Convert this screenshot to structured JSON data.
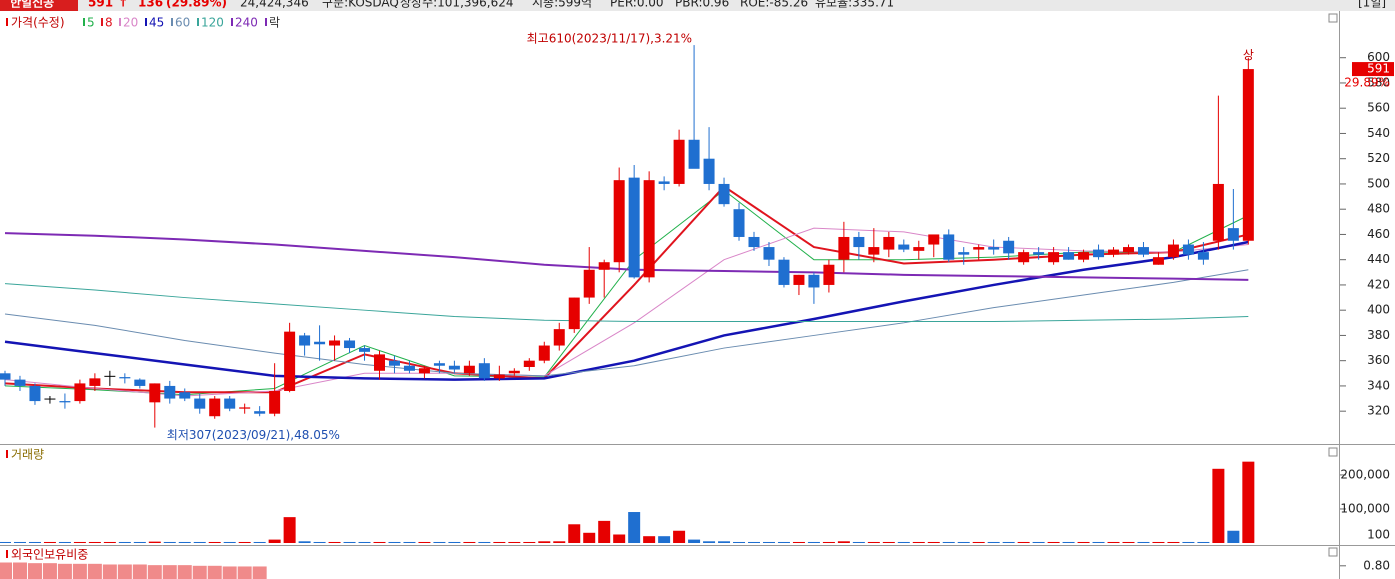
{
  "header": {
    "name": "한일신공",
    "price": "591",
    "arrow": "↑",
    "change": "136",
    "change_pct": "(29.89%)",
    "volume": "24,424,346",
    "market": "구분:KOSDAQ",
    "shares": "상장수:101,396,624",
    "cap": "시총:599억",
    "per": "PER:0.00",
    "pbr": "PBR:0.96",
    "roe": "ROE:-85.26",
    "reserve": "유보율:335.71",
    "period": "[1일]"
  },
  "chart_data": [
    {
      "type": "candlestick",
      "name": "가격(수정)",
      "up_color": "#e60000",
      "down_color": "#1f6fd0",
      "ylim": [
        294,
        637
      ],
      "yticks": [
        320,
        340,
        360,
        380,
        400,
        420,
        440,
        460,
        480,
        500,
        520,
        540,
        560,
        580,
        600
      ],
      "lock_label": "락",
      "open": [
        350,
        345,
        340,
        330,
        328,
        328,
        340,
        348,
        347,
        345,
        327,
        340,
        335,
        330,
        316,
        330,
        322,
        320,
        318,
        336,
        380,
        375,
        372,
        376,
        370,
        352,
        360,
        356,
        350,
        358,
        356,
        350,
        358,
        346,
        350,
        355,
        360,
        372,
        385,
        410,
        432,
        438,
        505,
        426,
        502,
        500,
        535,
        520,
        500,
        480,
        458,
        450,
        440,
        420,
        428,
        420,
        440,
        458,
        444,
        448,
        452,
        447,
        452,
        460,
        446,
        448,
        450,
        455,
        438,
        446,
        438,
        446,
        440,
        448,
        444,
        446,
        450,
        436,
        442,
        452,
        446,
        455,
        465,
        455
      ],
      "high": [
        352,
        348,
        342,
        332,
        334,
        345,
        350,
        352,
        350,
        346,
        342,
        344,
        338,
        334,
        332,
        332,
        326,
        324,
        358,
        390,
        382,
        388,
        380,
        378,
        372,
        368,
        364,
        360,
        356,
        360,
        360,
        360,
        362,
        356,
        354,
        362,
        375,
        390,
        410,
        450,
        440,
        513,
        515,
        510,
        506,
        543,
        610,
        545,
        505,
        485,
        462,
        454,
        442,
        428,
        430,
        440,
        470,
        462,
        465,
        462,
        456,
        455,
        458,
        464,
        450,
        452,
        456,
        458,
        448,
        450,
        450,
        450,
        448,
        452,
        450,
        452,
        454,
        446,
        456,
        456,
        454,
        570,
        496,
        600
      ],
      "low": [
        340,
        336,
        325,
        326,
        322,
        326,
        336,
        340,
        342,
        338,
        307,
        326,
        328,
        318,
        314,
        320,
        318,
        316,
        316,
        335,
        364,
        360,
        360,
        366,
        360,
        345,
        350,
        350,
        346,
        350,
        350,
        348,
        344,
        344,
        348,
        352,
        358,
        368,
        382,
        405,
        410,
        430,
        425,
        422,
        495,
        498,
        515,
        495,
        482,
        455,
        447,
        435,
        418,
        412,
        405,
        414,
        430,
        440,
        438,
        442,
        446,
        440,
        442,
        438,
        436,
        440,
        444,
        440,
        436,
        440,
        436,
        440,
        438,
        440,
        442,
        444,
        442,
        436,
        440,
        440,
        436,
        448,
        448,
        452
      ],
      "close": [
        345,
        340,
        328,
        330,
        327,
        342,
        346,
        348,
        346,
        340,
        342,
        330,
        330,
        322,
        330,
        322,
        323,
        318,
        336,
        383,
        372,
        373,
        376,
        370,
        367,
        365,
        356,
        352,
        354,
        356,
        353,
        356,
        346,
        349,
        352,
        360,
        372,
        385,
        410,
        432,
        438,
        503,
        426,
        503,
        500,
        535,
        512,
        500,
        484,
        458,
        450,
        440,
        420,
        428,
        418,
        436,
        458,
        450,
        450,
        458,
        448,
        450,
        460,
        440,
        444,
        450,
        448,
        445,
        446,
        444,
        446,
        440,
        446,
        442,
        448,
        450,
        444,
        442,
        452,
        444,
        440,
        500,
        455,
        591
      ],
      "series": [
        {
          "name": "5",
          "color": "#22b14c",
          "width": 1,
          "x": [
            0,
            6,
            12,
            18,
            24,
            30,
            36,
            42,
            48,
            54,
            60,
            66,
            72,
            78,
            83
          ],
          "values": [
            340,
            337,
            333,
            338,
            372,
            348,
            347,
            440,
            495,
            440,
            440,
            442,
            446,
            446,
            475
          ]
        },
        {
          "name": "8",
          "color": "#e0141e",
          "width": 2,
          "x": [
            0,
            6,
            12,
            18,
            24,
            30,
            36,
            42,
            48,
            54,
            60,
            66,
            72,
            78,
            83
          ],
          "values": [
            342,
            338,
            335,
            335,
            365,
            350,
            346,
            420,
            498,
            450,
            437,
            440,
            444,
            446,
            460
          ]
        },
        {
          "name": "20",
          "color": "#d986c8",
          "width": 1,
          "x": [
            0,
            6,
            12,
            18,
            24,
            30,
            36,
            42,
            48,
            54,
            60,
            66,
            72,
            78,
            83
          ],
          "values": [
            345,
            338,
            332,
            336,
            350,
            350,
            348,
            390,
            440,
            465,
            462,
            450,
            447,
            446,
            452
          ]
        },
        {
          "name": "45",
          "color": "#1414b4",
          "width": 2.5,
          "x": [
            0,
            6,
            12,
            18,
            24,
            30,
            36,
            42,
            48,
            54,
            60,
            66,
            72,
            78,
            83
          ],
          "values": [
            375,
            366,
            357,
            348,
            346,
            345,
            346,
            360,
            380,
            393,
            407,
            420,
            432,
            442,
            454
          ]
        },
        {
          "name": "60",
          "color": "#6a8cb0",
          "width": 1,
          "x": [
            0,
            6,
            12,
            18,
            24,
            30,
            36,
            42,
            48,
            54,
            60,
            66,
            72,
            78,
            83
          ],
          "values": [
            397,
            388,
            376,
            366,
            357,
            350,
            348,
            356,
            370,
            380,
            390,
            402,
            412,
            422,
            432
          ]
        },
        {
          "name": "120",
          "color": "#3aa59a",
          "width": 1,
          "x": [
            0,
            6,
            12,
            18,
            24,
            30,
            36,
            42,
            48,
            54,
            60,
            66,
            72,
            78,
            83
          ],
          "values": [
            421,
            416,
            410,
            405,
            400,
            395,
            392,
            391,
            391,
            391,
            391,
            391,
            392,
            393,
            395
          ]
        },
        {
          "name": "240",
          "color": "#7d2ab4",
          "width": 2,
          "x": [
            0,
            6,
            12,
            18,
            24,
            30,
            36,
            42,
            48,
            54,
            60,
            66,
            72,
            78,
            83
          ],
          "values": [
            461,
            459,
            456,
            452,
            447,
            442,
            436,
            432,
            431,
            430,
            428,
            427,
            426,
            425,
            424
          ]
        }
      ],
      "annotations": [
        {
          "text": "최고610(2023/11/17),3.21%",
          "index": 46,
          "value": 610
        },
        {
          "text": "최저307(2023/09/21),48.05%",
          "index": 10,
          "value": 307
        },
        {
          "text": "상",
          "index": 83,
          "value": 600
        }
      ],
      "price_tag": {
        "value": 591,
        "label": "591",
        "change": "29.89%"
      }
    },
    {
      "type": "bar",
      "title": "거래량",
      "color_up": "#e60000",
      "color_down": "#1f6fd0",
      "ylim": [
        0,
        285000
      ],
      "yticks": [
        {
          "value": 100000,
          "label": "100,000"
        },
        {
          "value": 200000,
          "label": "200,000"
        }
      ],
      "unit": "100",
      "values": [
        3000,
        3000,
        3000,
        3000,
        3000,
        3000,
        3000,
        3000,
        3000,
        3000,
        4000,
        3000,
        3000,
        3000,
        3000,
        3000,
        3000,
        3000,
        10000,
        76000,
        5000,
        3000,
        3000,
        3000,
        3000,
        3000,
        3000,
        3000,
        3000,
        3000,
        3000,
        3000,
        3000,
        3000,
        3000,
        3000,
        5000,
        5000,
        55000,
        30000,
        65000,
        25000,
        91000,
        20000,
        20000,
        36000,
        10000,
        5000,
        5000,
        3000,
        3000,
        3000,
        3000,
        3000,
        3000,
        3000,
        5000,
        3000,
        3000,
        3000,
        3000,
        3000,
        3000,
        3000,
        3000,
        3000,
        3000,
        3000,
        3000,
        3000,
        3000,
        3000,
        3000,
        3000,
        3000,
        3000,
        3000,
        3000,
        3000,
        3000,
        3000,
        218000,
        36000,
        239000
      ]
    },
    {
      "type": "bar",
      "title": "외국인보유비중",
      "color": "#f08a8a",
      "ylim": [
        0.78,
        0.83
      ],
      "yticks": [
        {
          "value": 0.8,
          "label": "0.80"
        }
      ],
      "values": [
        0.805,
        0.805,
        0.804,
        0.804,
        0.803,
        0.803,
        0.803,
        0.802,
        0.802,
        0.802,
        0.801,
        0.801,
        0.801,
        0.8,
        0.8,
        0.799,
        0.799,
        0.799
      ]
    }
  ]
}
